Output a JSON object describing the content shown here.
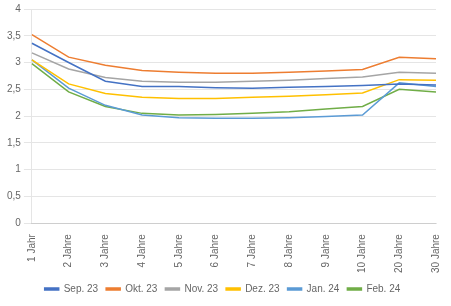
{
  "chart_data": {
    "type": "line",
    "categories": [
      "1 Jahr",
      "2 Jahre",
      "3 Jahre",
      "4 Jahre",
      "5 Jahre",
      "6 Jahre",
      "7 Jahre",
      "8 Jahre",
      "9 Jahre",
      "10 Jahre",
      "20 Jahre",
      "30 Jahre"
    ],
    "series": [
      {
        "name": "Sep. 23",
        "color": "#4472C4",
        "values": [
          3.36,
          3.0,
          2.65,
          2.55,
          2.55,
          2.53,
          2.52,
          2.54,
          2.55,
          2.57,
          2.6,
          2.58
        ]
      },
      {
        "name": "Okt. 23",
        "color": "#ED7D31",
        "values": [
          3.52,
          3.1,
          2.95,
          2.85,
          2.82,
          2.8,
          2.8,
          2.82,
          2.84,
          2.87,
          3.1,
          3.07
        ]
      },
      {
        "name": "Nov. 23",
        "color": "#A5A5A5",
        "values": [
          3.18,
          2.88,
          2.72,
          2.65,
          2.63,
          2.63,
          2.65,
          2.67,
          2.7,
          2.73,
          2.82,
          2.8
        ]
      },
      {
        "name": "Dez. 23",
        "color": "#FFC000",
        "values": [
          3.05,
          2.6,
          2.42,
          2.35,
          2.33,
          2.33,
          2.35,
          2.37,
          2.4,
          2.43,
          2.68,
          2.67
        ]
      },
      {
        "name": "Jan. 24",
        "color": "#5B9BD5",
        "values": [
          3.05,
          2.52,
          2.2,
          2.02,
          1.97,
          1.96,
          1.96,
          1.97,
          1.99,
          2.02,
          2.62,
          2.55
        ]
      },
      {
        "name": "Feb. 24",
        "color": "#70AD47",
        "values": [
          2.98,
          2.45,
          2.18,
          2.05,
          2.02,
          2.03,
          2.05,
          2.08,
          2.13,
          2.18,
          2.5,
          2.45
        ]
      }
    ],
    "ylim": [
      0,
      4
    ],
    "yticks": [
      0,
      {
        "value": 0.5,
        "label": "0,5"
      },
      1,
      {
        "value": 1.5,
        "label": "1,5"
      },
      2,
      {
        "value": 2.5,
        "label": "2,5"
      },
      3,
      {
        "value": 3.5,
        "label": "3,5"
      },
      4
    ],
    "grid": true,
    "legend": "bottom"
  }
}
